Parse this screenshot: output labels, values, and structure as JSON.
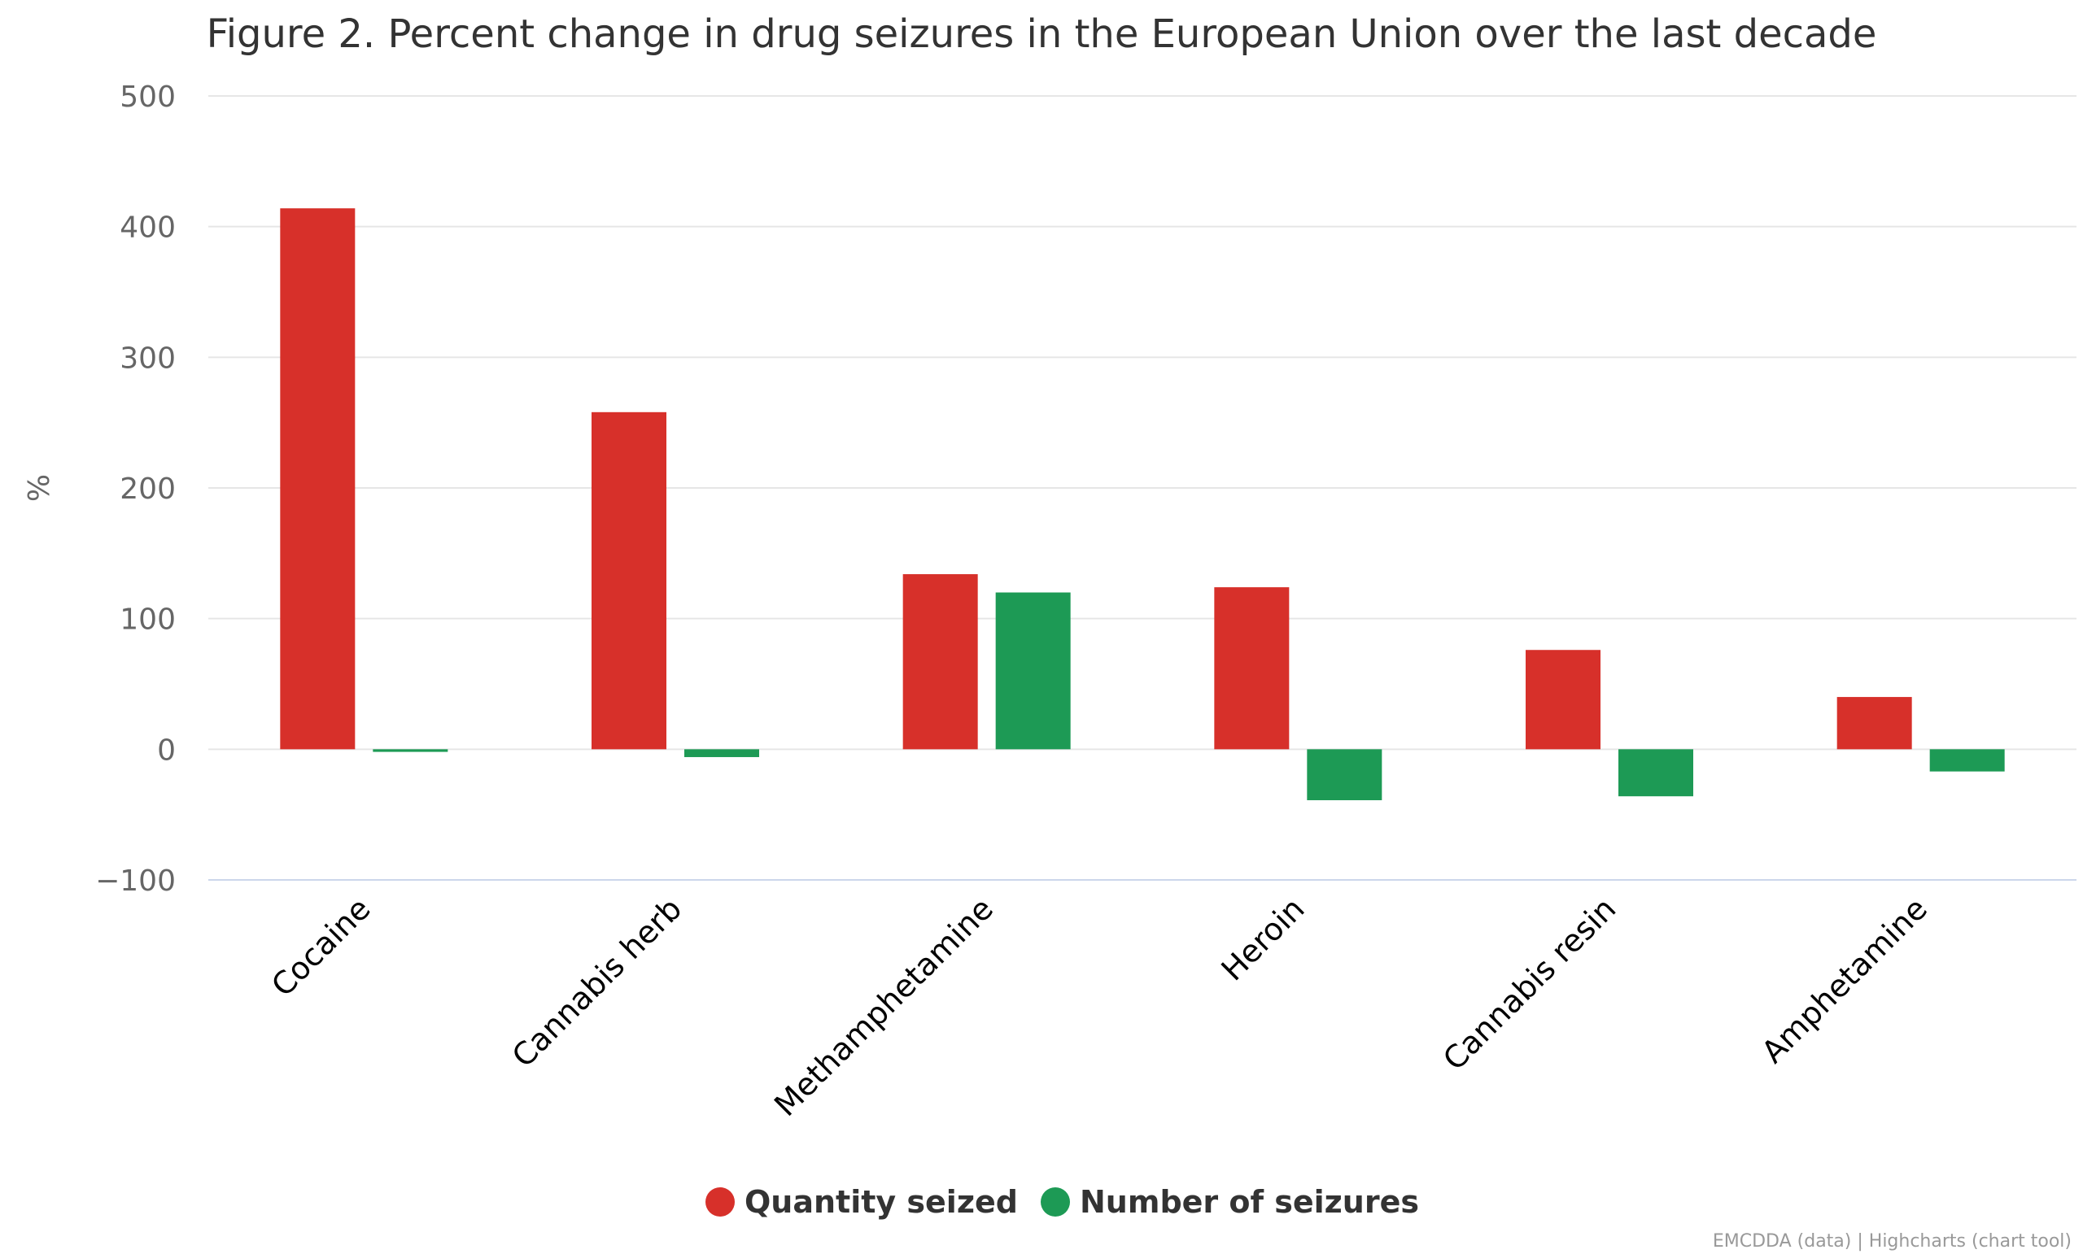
{
  "chart_data": {
    "type": "bar",
    "title": "Figure 2. Percent change in drug seizures in the European Union over the last decade",
    "ylabel": "%",
    "xlabel": "",
    "ylim": [
      -100,
      500
    ],
    "yticks": [
      -100,
      0,
      100,
      200,
      300,
      400,
      500
    ],
    "grid": true,
    "legend_position": "bottom-center",
    "categories": [
      "Cocaine",
      "Cannabis herb",
      "Methamphetamine",
      "Heroin",
      "Cannabis resin",
      "Amphetamine"
    ],
    "series": [
      {
        "name": "Quantity seized",
        "color": "#d7302a",
        "values": [
          414,
          258,
          134,
          124,
          76,
          40
        ]
      },
      {
        "name": "Number of seizures",
        "color": "#1d9a55",
        "values": [
          -2,
          -6,
          120,
          -39,
          -36,
          -17
        ]
      }
    ],
    "credits": "EMCDDA (data) | Highcharts (chart tool)"
  },
  "colors": {
    "grid": "#e6e6e6",
    "axis_line": "#ccd6eb",
    "title": "#333333",
    "tick_label": "#666666",
    "category_label": "#000000",
    "credits": "#999999"
  }
}
